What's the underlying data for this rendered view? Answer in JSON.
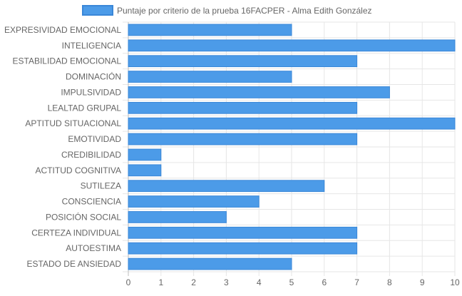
{
  "chart_data": {
    "type": "bar",
    "orientation": "horizontal",
    "title": "",
    "xlabel": "",
    "ylabel": "",
    "xlim": [
      0,
      10
    ],
    "x_ticks": [
      0,
      1,
      2,
      3,
      4,
      5,
      6,
      7,
      8,
      9,
      10
    ],
    "grid": true,
    "legend_position": "top",
    "categories": [
      "EXPRESIVIDAD EMOCIONAL",
      "INTELIGENCIA",
      "ESTABILIDAD EMOCIONAL",
      "DOMINACIÓN",
      "IMPULSIVIDAD",
      "LEALTAD GRUPAL",
      "APTITUD SITUACIONAL",
      "EMOTIVIDAD",
      "CREDIBILIDAD",
      "ACTITUD COGNITIVA",
      "SUTILEZA",
      "CONSCIENCIA",
      "POSICIÓN SOCIAL",
      "CERTEZA INDIVIDUAL",
      "AUTOESTIMA",
      "ESTADO DE ANSIEDAD"
    ],
    "series": [
      {
        "name": "Puntaje por criterio de la prueba 16FACPER - Alma Edith González",
        "color": "#4c9be8",
        "border_color": "#3a87d8",
        "values": [
          5,
          10,
          7,
          5,
          8,
          7,
          10,
          7,
          1,
          1,
          6,
          4,
          3,
          7,
          7,
          5
        ]
      }
    ]
  }
}
